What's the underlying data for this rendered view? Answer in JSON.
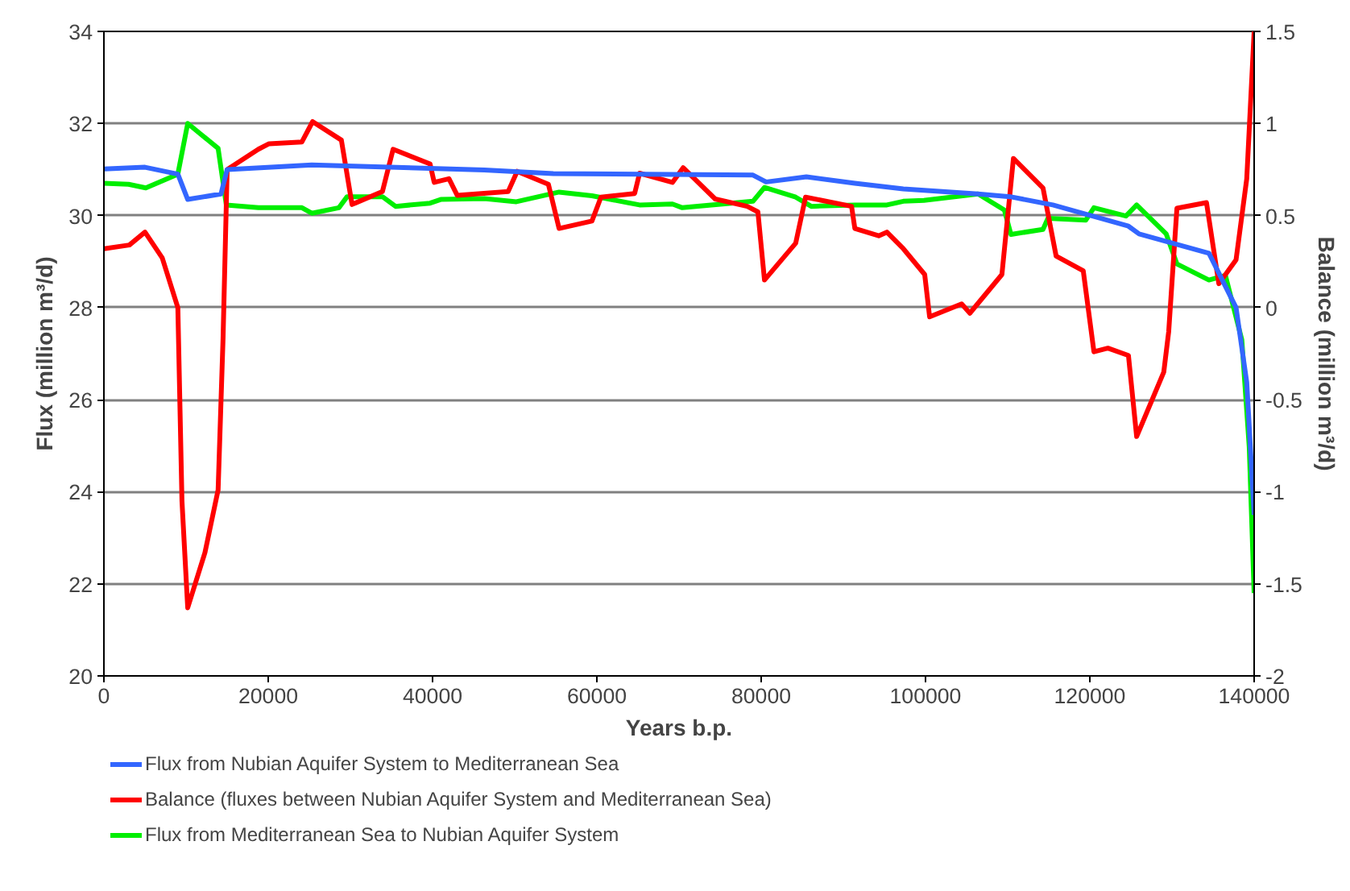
{
  "chart_data": {
    "type": "line",
    "xlabel": "Years b.p.",
    "ylabel": "Flux (million m³/d)",
    "y2label": "Balance (million m³/d)",
    "xlim": [
      0,
      140000
    ],
    "xticks": [
      0,
      20000,
      40000,
      60000,
      80000,
      100000,
      120000,
      140000
    ],
    "ylim": [
      20,
      34
    ],
    "yticks": [
      20,
      22,
      24,
      26,
      28,
      30,
      32,
      34
    ],
    "y2lim": [
      -2,
      1.5
    ],
    "y2ticks": [
      -2,
      -1.5,
      -1,
      -0.5,
      0,
      0.5,
      1,
      1.5
    ],
    "grid": "y",
    "legend": "bottom",
    "line_style": "solid",
    "marker": "none",
    "series": [
      {
        "name": "Flux from Nubian Aquifer System to Mediterranean Sea",
        "color": "#3366ff",
        "x": [
          0,
          5000,
          9000,
          10200,
          14250,
          15000,
          25300,
          46300,
          54700,
          79000,
          80600,
          85500,
          91400,
          97300,
          106400,
          110300,
          115500,
          124700,
          126000,
          134500,
          137800,
          139100,
          140000
        ],
        "values": [
          31.01,
          31.05,
          30.9,
          30.35,
          30.47,
          31.0,
          31.1,
          30.99,
          30.91,
          30.88,
          30.73,
          30.84,
          30.7,
          30.58,
          30.47,
          30.41,
          30.23,
          29.77,
          29.6,
          29.18,
          28.0,
          26.38,
          23.5
        ]
      },
      {
        "name": "Balance (fluxes between Nubian Aquifer System and Mediterranean Sea)",
        "color": "#ff0000",
        "axis": "y2",
        "x": [
          0,
          3100,
          5000,
          7100,
          9000,
          9500,
          10200,
          12300,
          13900,
          14500,
          15000,
          18800,
          20100,
          24100,
          25400,
          28900,
          30200,
          33900,
          35200,
          39700,
          40200,
          42000,
          43000,
          49200,
          50300,
          54100,
          55400,
          59400,
          60500,
          64600,
          65200,
          69200,
          70500,
          74400,
          78300,
          79600,
          80400,
          84200,
          85400,
          91000,
          91400,
          94300,
          95300,
          97300,
          99900,
          100500,
          104400,
          105400,
          109300,
          110700,
          114300,
          115900,
          119200,
          120500,
          122200,
          124700,
          125700,
          129000,
          129600,
          130600,
          134200,
          135700,
          137800,
          139100,
          140000
        ],
        "values": [
          0.32,
          0.34,
          0.41,
          0.27,
          0.0,
          -1.05,
          -1.63,
          -1.33,
          -0.99,
          -0.17,
          0.75,
          0.86,
          0.89,
          0.9,
          1.01,
          0.91,
          0.56,
          0.63,
          0.86,
          0.78,
          0.68,
          0.7,
          0.61,
          0.63,
          0.74,
          0.67,
          0.43,
          0.47,
          0.6,
          0.62,
          0.73,
          0.68,
          0.76,
          0.59,
          0.55,
          0.52,
          0.15,
          0.35,
          0.6,
          0.55,
          0.43,
          0.39,
          0.41,
          0.32,
          0.18,
          -0.05,
          0.02,
          -0.03,
          0.18,
          0.81,
          0.65,
          0.28,
          0.2,
          -0.24,
          -0.22,
          -0.26,
          -0.7,
          -0.35,
          -0.13,
          0.54,
          0.57,
          0.13,
          0.26,
          0.7,
          1.5
        ]
      },
      {
        "name": "Flux from Mediterranean Sea to Nubian Aquifer System",
        "color": "#00ee00",
        "x": [
          0,
          3000,
          5100,
          9000,
          10200,
          13900,
          14900,
          18800,
          24100,
          25300,
          28600,
          29600,
          33900,
          35500,
          39700,
          41000,
          46300,
          50200,
          55400,
          59400,
          65200,
          69200,
          70400,
          79000,
          80400,
          84200,
          86100,
          91400,
          95300,
          97300,
          99800,
          106400,
          109600,
          110400,
          114300,
          114900,
          119500,
          120500,
          124400,
          125700,
          129300,
          130600,
          134500,
          136500,
          138500,
          139400,
          140000
        ],
        "values": [
          30.7,
          30.68,
          30.6,
          30.9,
          32.0,
          31.46,
          30.23,
          30.17,
          30.17,
          30.05,
          30.17,
          30.41,
          30.41,
          30.2,
          30.27,
          30.35,
          30.37,
          30.3,
          30.51,
          30.43,
          30.23,
          30.25,
          30.17,
          30.31,
          30.61,
          30.4,
          30.2,
          30.23,
          30.23,
          30.31,
          30.33,
          30.47,
          30.12,
          29.59,
          29.7,
          29.94,
          29.9,
          30.17,
          29.99,
          30.23,
          29.6,
          28.95,
          28.6,
          28.7,
          27.3,
          24.98,
          21.8
        ]
      }
    ]
  }
}
